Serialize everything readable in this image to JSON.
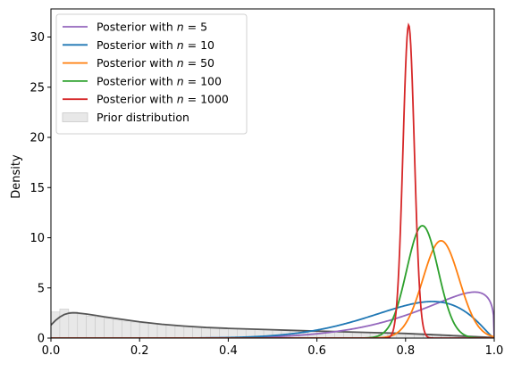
{
  "chart_data": {
    "type": "line",
    "title": "",
    "xlabel": "",
    "ylabel": "Density",
    "xlim": [
      0.0,
      1.0
    ],
    "ylim": [
      0,
      32.8
    ],
    "xticks": [
      0.0,
      0.2,
      0.4,
      0.6,
      0.8,
      1.0
    ],
    "xtick_labels": [
      "0.0",
      "0.2",
      "0.4",
      "0.6",
      "0.8",
      "1.0"
    ],
    "yticks": [
      0,
      5,
      10,
      15,
      20,
      25,
      30
    ],
    "ytick_labels": [
      "0",
      "5",
      "10",
      "15",
      "20",
      "25",
      "30"
    ],
    "grid": false,
    "legend_position": "top-left",
    "series": [
      {
        "name": "Posterior with n = 5",
        "name_prefix": "Posterior with ",
        "name_math": "n = 5",
        "color": "#9467bd",
        "shape": "beta",
        "a": 7.5,
        "b": 1.3
      },
      {
        "name": "Posterior with n = 10",
        "name_prefix": "Posterior with ",
        "name_math": "n = 10",
        "color": "#1f77b4",
        "shape": "beta",
        "a": 9,
        "b": 2.3
      },
      {
        "name": "Posterior with n = 50",
        "name_prefix": "Posterior with ",
        "name_math": "n = 50",
        "color": "#ff7f0e",
        "shape": "gaussian",
        "peak_x": 0.88,
        "peak_y": 9.7,
        "sd": 0.041
      },
      {
        "name": "Posterior with n = 100",
        "name_prefix": "Posterior with ",
        "name_math": "n = 100",
        "color": "#2ca02c",
        "shape": "gaussian",
        "peak_x": 0.838,
        "peak_y": 11.2,
        "sd": 0.0355
      },
      {
        "name": "Posterior with n = 1000",
        "name_prefix": "Posterior with ",
        "name_math": "n = 1000",
        "color": "#d62728",
        "shape": "gaussian",
        "peak_x": 0.807,
        "peak_y": 31.2,
        "sd": 0.0128
      }
    ],
    "prior": {
      "name": "Prior distribution",
      "kde_color": "#555555",
      "hist_fill": "#e8e8e8",
      "hist_edge": "#c8c8c8",
      "kde_points": [
        [
          0.0,
          1.3
        ],
        [
          0.01,
          1.75
        ],
        [
          0.02,
          2.1
        ],
        [
          0.03,
          2.35
        ],
        [
          0.04,
          2.48
        ],
        [
          0.05,
          2.52
        ],
        [
          0.06,
          2.5
        ],
        [
          0.08,
          2.4
        ],
        [
          0.1,
          2.27
        ],
        [
          0.12,
          2.12
        ],
        [
          0.15,
          1.93
        ],
        [
          0.2,
          1.62
        ],
        [
          0.25,
          1.38
        ],
        [
          0.3,
          1.2
        ],
        [
          0.35,
          1.06
        ],
        [
          0.4,
          0.97
        ],
        [
          0.45,
          0.9
        ],
        [
          0.5,
          0.83
        ],
        [
          0.55,
          0.76
        ],
        [
          0.6,
          0.7
        ],
        [
          0.65,
          0.64
        ],
        [
          0.7,
          0.58
        ],
        [
          0.75,
          0.52
        ],
        [
          0.8,
          0.46
        ],
        [
          0.85,
          0.36
        ],
        [
          0.9,
          0.26
        ],
        [
          0.95,
          0.15
        ],
        [
          1.0,
          0.05
        ]
      ],
      "hist_bins": 50,
      "hist_bars": [
        2.6,
        2.9,
        2.6,
        2.4,
        2.2,
        2.1,
        2.0,
        1.8,
        1.7,
        1.6,
        1.5,
        1.45,
        1.35,
        1.3,
        1.2,
        1.15,
        1.1,
        1.05,
        1.0,
        0.98,
        0.95,
        0.92,
        0.9,
        0.88,
        0.85,
        0.82,
        0.8,
        0.78,
        0.75,
        0.72,
        0.7,
        0.68,
        0.65,
        0.63,
        0.6,
        0.58,
        0.56,
        0.54,
        0.52,
        0.5,
        0.48,
        0.45,
        0.42,
        0.38,
        0.34,
        0.3,
        0.25,
        0.2,
        0.15,
        0.1
      ]
    }
  }
}
